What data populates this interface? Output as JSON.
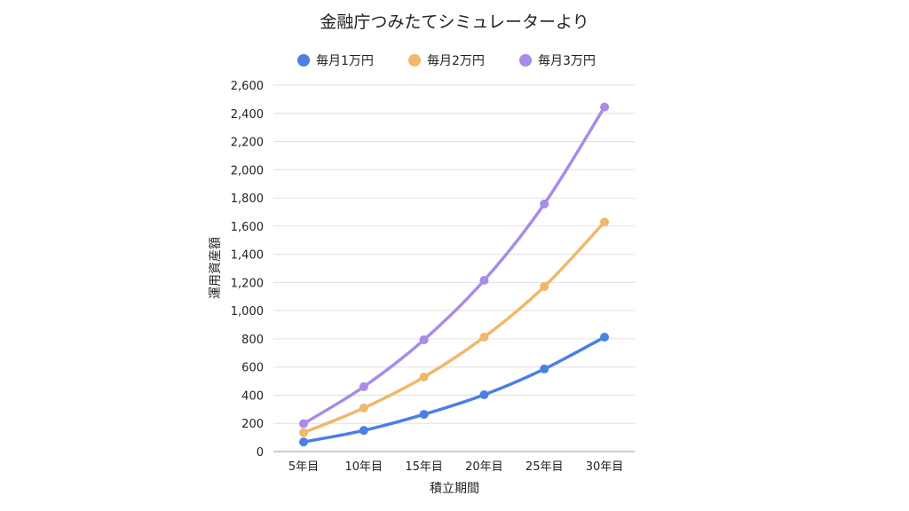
{
  "chart_data": {
    "type": "line",
    "title": "金融庁つみたてシミュレーターより",
    "xlabel": "積立期間",
    "ylabel": "運用資産額",
    "categories": [
      "5年目",
      "10年目",
      "15年目",
      "20年目",
      "25年目",
      "30年目"
    ],
    "ylim": [
      0,
      2600
    ],
    "yticks": [
      0,
      200,
      400,
      600,
      800,
      1000,
      1200,
      1400,
      1600,
      1800,
      2000,
      2200,
      2400,
      2600
    ],
    "ytick_labels": [
      "0",
      "200",
      "400",
      "600",
      "800",
      "1,000",
      "1,200",
      "1,400",
      "1,600",
      "1,800",
      "2,000",
      "2,200",
      "2,400",
      "2,600"
    ],
    "grid": true,
    "legend_position": "top",
    "smooth": true,
    "series": [
      {
        "name": "毎月1万円",
        "color": "#4a7fe6",
        "values": [
          68,
          150,
          264,
          403,
          586,
          812
        ]
      },
      {
        "name": "毎月2万円",
        "color": "#efb86a",
        "values": [
          134,
          309,
          529,
          812,
          1171,
          1629
        ]
      },
      {
        "name": "毎月3万円",
        "color": "#a98be9",
        "values": [
          198,
          460,
          793,
          1215,
          1757,
          2445
        ]
      }
    ]
  }
}
